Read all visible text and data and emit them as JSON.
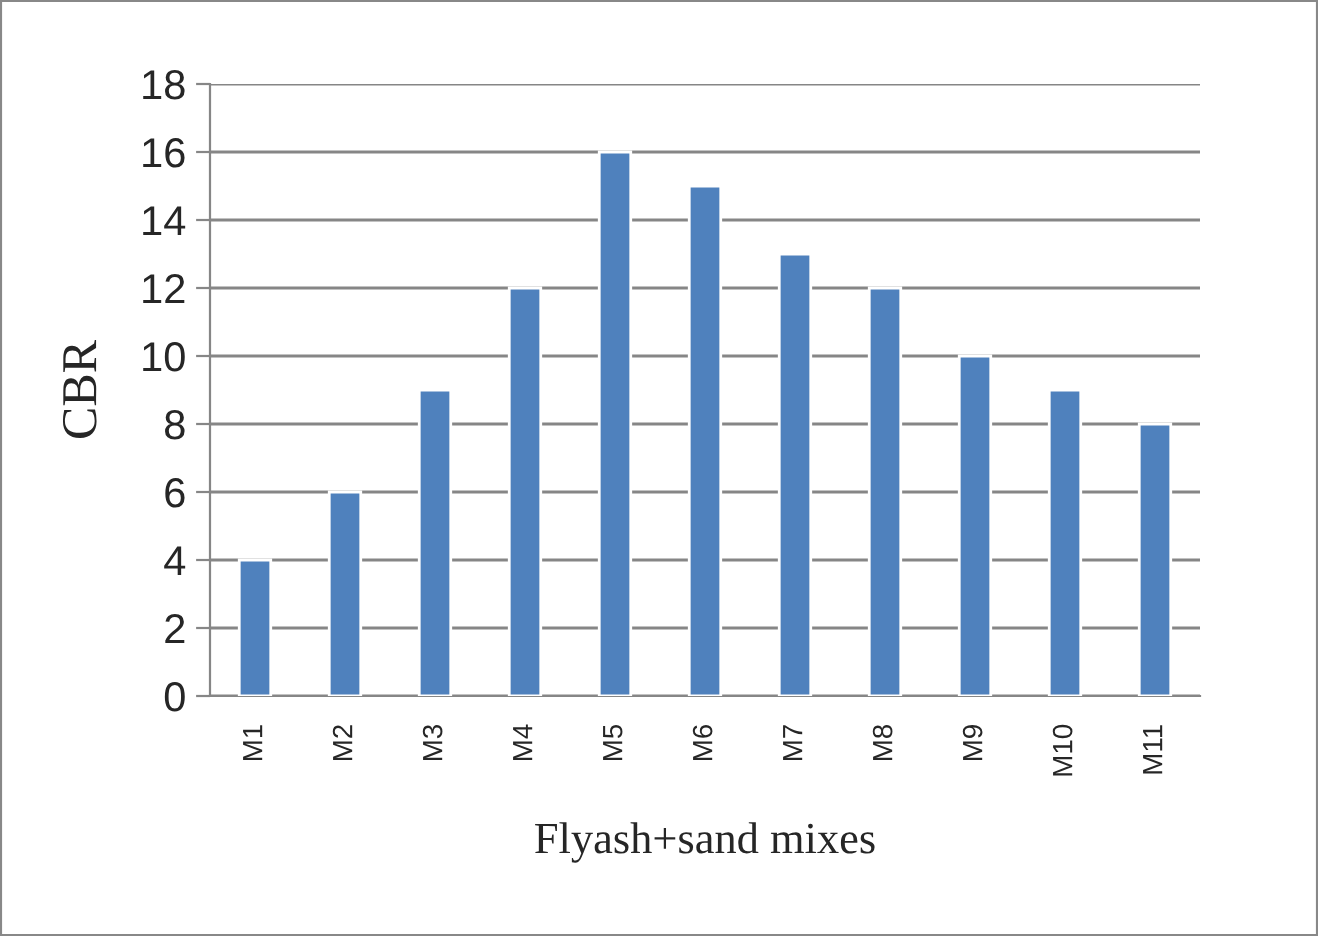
{
  "chart_data": {
    "type": "bar",
    "xlabel": "Flyash+sand mixes",
    "ylabel": "CBR",
    "categories": [
      "M1",
      "M2",
      "M3",
      "M4",
      "M5",
      "M6",
      "M7",
      "M8",
      "M9",
      "M10",
      "M11"
    ],
    "values": [
      4,
      6,
      9,
      12,
      16,
      15,
      13,
      12,
      10,
      9,
      8
    ],
    "color": "#4f81bd",
    "ylim": [
      0,
      18
    ],
    "yticks": [
      0,
      2,
      4,
      6,
      8,
      10,
      12,
      14,
      16,
      18
    ],
    "grid": "y"
  }
}
